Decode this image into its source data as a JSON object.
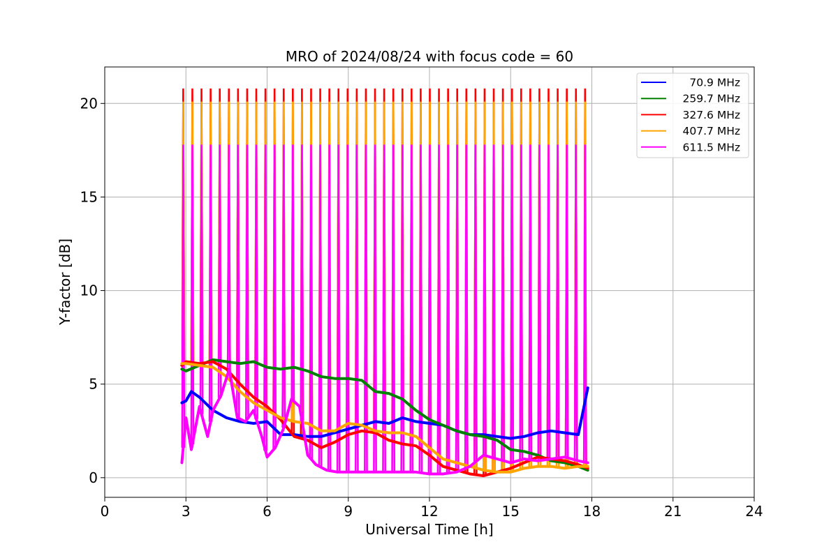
{
  "chart_data": {
    "type": "line",
    "title": "MRO of 2024/08/24 with focus code = 60",
    "xlabel": "Universal Time [h]",
    "ylabel": "Y-factor [dB]",
    "xlim": [
      0,
      24
    ],
    "ylim": [
      -1.05,
      21.95
    ],
    "xticks": [
      0,
      3,
      6,
      9,
      12,
      15,
      18,
      21,
      24
    ],
    "yticks": [
      0,
      5,
      10,
      15,
      20
    ],
    "grid": true,
    "legend_position": "top-right",
    "calibration_spikes": {
      "start_h": 2.9,
      "end_h": 17.75,
      "count": 45,
      "peak_db": {
        "327.6 MHz": 20.8,
        "407.7 MHz": 20.1,
        "611.5 MHz": 17.8
      }
    },
    "series": [
      {
        "name": "70.9 MHz",
        "color": "#0000ff",
        "x": [
          2.85,
          3.0,
          3.2,
          3.5,
          4.0,
          4.5,
          5.0,
          5.5,
          6.0,
          6.5,
          7.0,
          7.5,
          8.0,
          8.5,
          9.0,
          9.5,
          10.0,
          10.5,
          11.0,
          11.5,
          12.0,
          12.5,
          13.0,
          13.5,
          14.0,
          14.5,
          15.0,
          15.5,
          16.0,
          16.5,
          17.0,
          17.5,
          17.85
        ],
        "y": [
          4.0,
          4.1,
          4.6,
          4.3,
          3.6,
          3.2,
          3.0,
          2.9,
          3.0,
          2.3,
          2.3,
          2.2,
          2.2,
          2.4,
          2.6,
          2.8,
          3.0,
          2.9,
          3.2,
          3.0,
          2.9,
          2.8,
          2.5,
          2.3,
          2.3,
          2.2,
          2.1,
          2.2,
          2.4,
          2.5,
          2.4,
          2.3,
          4.8
        ]
      },
      {
        "name": "259.7 MHz",
        "color": "#008000",
        "x": [
          2.85,
          3.0,
          3.5,
          4.0,
          4.5,
          5.0,
          5.5,
          6.0,
          6.5,
          7.0,
          7.5,
          8.0,
          8.5,
          9.0,
          9.5,
          10.0,
          10.5,
          11.0,
          11.5,
          12.0,
          12.5,
          13.0,
          13.5,
          14.0,
          14.5,
          15.0,
          15.5,
          16.0,
          16.5,
          17.0,
          17.5,
          17.85
        ],
        "y": [
          5.8,
          5.7,
          6.0,
          6.3,
          6.2,
          6.1,
          6.2,
          5.9,
          5.8,
          5.9,
          5.7,
          5.4,
          5.3,
          5.3,
          5.2,
          4.6,
          4.5,
          4.2,
          3.6,
          3.1,
          2.8,
          2.5,
          2.3,
          2.2,
          2.0,
          1.5,
          1.4,
          1.2,
          0.9,
          0.8,
          0.6,
          0.4
        ]
      },
      {
        "name": "327.6 MHz",
        "color": "#ff0000",
        "x": [
          2.85,
          3.0,
          3.5,
          4.0,
          4.5,
          5.0,
          5.5,
          6.0,
          6.5,
          7.0,
          7.5,
          8.0,
          8.5,
          9.0,
          9.5,
          10.0,
          10.5,
          11.0,
          11.5,
          12.0,
          12.5,
          13.0,
          13.5,
          14.0,
          14.5,
          15.0,
          15.5,
          16.0,
          16.5,
          17.0,
          17.5,
          17.85
        ],
        "y": [
          6.0,
          6.2,
          6.1,
          6.2,
          5.8,
          5.0,
          4.3,
          3.8,
          3.1,
          2.2,
          2.0,
          1.6,
          1.9,
          2.3,
          2.5,
          2.4,
          2.0,
          1.8,
          1.7,
          1.2,
          0.6,
          0.4,
          0.2,
          0.1,
          0.3,
          0.5,
          0.8,
          1.1,
          1.0,
          0.9,
          0.7,
          0.5
        ]
      },
      {
        "name": "407.7 MHz",
        "color": "#ffa500",
        "x": [
          2.85,
          3.0,
          3.5,
          4.0,
          4.5,
          5.0,
          5.5,
          6.0,
          6.5,
          7.0,
          7.5,
          8.0,
          8.5,
          9.0,
          9.5,
          10.0,
          10.5,
          11.0,
          11.5,
          12.0,
          12.5,
          13.0,
          13.5,
          14.0,
          14.5,
          15.0,
          15.5,
          16.0,
          16.5,
          17.0,
          17.5,
          17.85
        ],
        "y": [
          6.1,
          6.1,
          6.0,
          5.9,
          5.4,
          4.6,
          4.0,
          3.6,
          3.2,
          3.0,
          2.9,
          2.5,
          2.5,
          2.9,
          2.8,
          2.5,
          2.4,
          2.4,
          2.2,
          1.6,
          1.0,
          0.8,
          0.6,
          0.4,
          0.3,
          0.3,
          0.5,
          0.6,
          0.6,
          0.5,
          0.6,
          0.6
        ]
      },
      {
        "name": "611.5 MHz",
        "color": "#ff00ff",
        "x": [
          2.85,
          3.0,
          3.2,
          3.5,
          3.8,
          4.0,
          4.3,
          4.6,
          4.9,
          5.2,
          5.5,
          5.8,
          6.0,
          6.3,
          6.6,
          6.9,
          7.2,
          7.5,
          7.8,
          8.2,
          8.6,
          9.0,
          9.5,
          10.0,
          10.5,
          11.0,
          11.5,
          12.0,
          12.5,
          13.0,
          13.5,
          14.0,
          14.5,
          15.0,
          15.5,
          16.0,
          16.5,
          17.0,
          17.5,
          17.85
        ],
        "y": [
          0.8,
          3.2,
          1.5,
          3.8,
          2.2,
          3.6,
          4.4,
          5.8,
          3.2,
          3.0,
          3.6,
          2.2,
          1.1,
          1.6,
          2.6,
          4.2,
          3.8,
          1.2,
          0.7,
          0.4,
          0.3,
          0.3,
          0.3,
          0.3,
          0.3,
          0.3,
          0.3,
          0.2,
          0.2,
          0.3,
          0.6,
          1.2,
          1.0,
          0.8,
          1.0,
          0.9,
          1.0,
          1.1,
          0.9,
          0.8
        ]
      }
    ]
  }
}
